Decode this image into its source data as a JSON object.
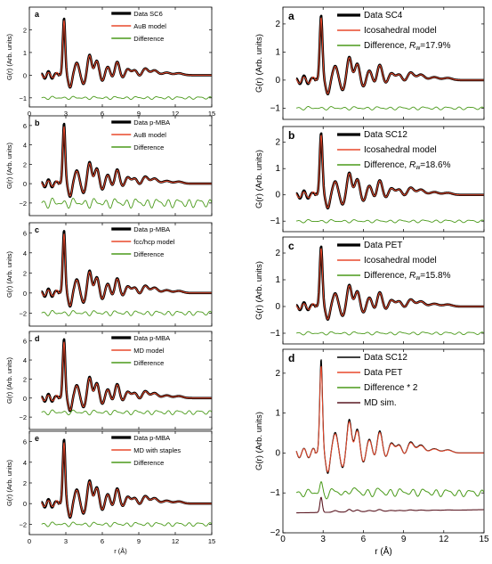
{
  "colors": {
    "data": "#000000",
    "model": "#e8482b",
    "difference": "#4a9a1a",
    "md_sim": "#5a1822",
    "axis": "#000000"
  },
  "chart_data": [
    {
      "type": "line",
      "panel_label": "a",
      "ylabel": "G(r) (Arb. units)",
      "xlabel": "",
      "xlim": [
        0,
        15
      ],
      "ylim": [
        -1.4,
        3.0
      ],
      "xticks": [
        0,
        3,
        6,
        9,
        12,
        15
      ],
      "yticks": [
        -1,
        0,
        1,
        2
      ],
      "xtick_labels": [
        "0",
        "3",
        "6",
        "9",
        "12",
        "15"
      ],
      "show_xtick_labels": true,
      "legend_position": "top-right",
      "series": [
        {
          "name": "Data SC6",
          "role": "data",
          "offset": 0,
          "amp": 1.0,
          "peak1": 2.5
        },
        {
          "name": "AuB model",
          "role": "model",
          "offset": 0,
          "amp": 1.0,
          "peak1": 2.5
        },
        {
          "name": "Difference",
          "role": "difference",
          "offset": -1.0,
          "amp": 0.08
        }
      ]
    },
    {
      "type": "line",
      "panel_label": "b",
      "ylabel": "G(r) (Arb. units)",
      "xlabel": "",
      "xlim": [
        0,
        15
      ],
      "ylim": [
        -3.3,
        7.0
      ],
      "xticks": [
        0,
        3,
        6,
        9,
        12,
        15
      ],
      "yticks": [
        -2,
        0,
        2,
        4,
        6
      ],
      "xtick_labels": [
        "0",
        "3",
        "6",
        "9",
        "12",
        "15"
      ],
      "show_xtick_labels": false,
      "legend_position": "top-right",
      "series": [
        {
          "name": "Data p-MBA",
          "role": "data",
          "offset": 0,
          "amp": 1.0,
          "peak1": 6.2
        },
        {
          "name": "AuB model",
          "role": "model",
          "offset": 0,
          "amp": 1.0,
          "peak1": 6.1
        },
        {
          "name": "Difference",
          "role": "difference",
          "offset": -2.0,
          "amp": 0.6
        }
      ]
    },
    {
      "type": "line",
      "panel_label": "c",
      "ylabel": "G(r) (Arb. units)",
      "xlabel": "",
      "xlim": [
        0,
        15
      ],
      "ylim": [
        -3.3,
        7.0
      ],
      "xticks": [
        0,
        3,
        6,
        9,
        12,
        15
      ],
      "yticks": [
        -2,
        0,
        2,
        4,
        6
      ],
      "xtick_labels": [
        "0",
        "3",
        "6",
        "9",
        "12",
        "15"
      ],
      "show_xtick_labels": false,
      "legend_position": "top-right",
      "series": [
        {
          "name": "Data p-MBA",
          "role": "data",
          "offset": 0,
          "amp": 1.0,
          "peak1": 6.2
        },
        {
          "name": "fcc/hcp model",
          "role": "model",
          "offset": 0,
          "amp": 1.0,
          "peak1": 6.1
        },
        {
          "name": "Difference",
          "role": "difference",
          "offset": -2.0,
          "amp": 0.3
        }
      ]
    },
    {
      "type": "line",
      "panel_label": "d",
      "ylabel": "G(r) (Arb. units)",
      "xlabel": "",
      "xlim": [
        0,
        15
      ],
      "ylim": [
        -3.3,
        7.0
      ],
      "xticks": [
        0,
        3,
        6,
        9,
        12,
        15
      ],
      "yticks": [
        -2,
        0,
        2,
        4,
        6
      ],
      "xtick_labels": [
        "0",
        "3",
        "6",
        "9",
        "12",
        "15"
      ],
      "show_xtick_labels": false,
      "legend_position": "top-right",
      "series": [
        {
          "name": "Data p-MBA",
          "role": "data",
          "offset": 0,
          "amp": 1.0,
          "peak1": 6.2
        },
        {
          "name": "MD model",
          "role": "model",
          "offset": 0,
          "amp": 1.0,
          "peak1": 6.1
        },
        {
          "name": "Difference",
          "role": "difference",
          "offset": -1.5,
          "amp": 0.3
        }
      ]
    },
    {
      "type": "line",
      "panel_label": "e",
      "ylabel": "G(r) (Arb. units)",
      "xlabel": "r (Å)",
      "xlim": [
        0,
        15
      ],
      "ylim": [
        -3.0,
        7.0
      ],
      "xticks": [
        0,
        3,
        6,
        9,
        12,
        15
      ],
      "yticks": [
        -2,
        0,
        2,
        4,
        6
      ],
      "xtick_labels": [
        "0",
        "3",
        "6",
        "9",
        "12",
        "15"
      ],
      "show_xtick_labels": true,
      "legend_position": "top-right",
      "series": [
        {
          "name": "Data p-MBA",
          "role": "data",
          "offset": 0,
          "amp": 1.0,
          "peak1": 6.2
        },
        {
          "name": "MD with staples",
          "role": "model",
          "offset": 0,
          "amp": 1.0,
          "peak1": 6.1
        },
        {
          "name": "Difference",
          "role": "difference",
          "offset": -2.0,
          "amp": 0.25
        }
      ]
    },
    {
      "type": "line",
      "panel_label": "a",
      "ylabel": "G(r) (Arb. units)",
      "xlabel": "",
      "xlim": [
        0,
        15
      ],
      "ylim": [
        -1.4,
        2.6
      ],
      "xticks": [
        0,
        3,
        6,
        9,
        12,
        15
      ],
      "yticks": [
        -1,
        0,
        1,
        2
      ],
      "xtick_labels": [
        "0",
        "3",
        "6",
        "9",
        "12",
        "15"
      ],
      "show_xtick_labels": false,
      "legend_position": "top-right",
      "series": [
        {
          "name": "Data SC4",
          "role": "data",
          "offset": 0,
          "amp": 1.0,
          "peak1": 2.3
        },
        {
          "name": "Icosahedral model",
          "role": "model",
          "offset": 0,
          "amp": 1.0,
          "peak1": 2.3
        },
        {
          "name": "Difference, ",
          "rw": "17.9%",
          "role": "difference",
          "offset": -1.0,
          "amp": 0.07
        }
      ]
    },
    {
      "type": "line",
      "panel_label": "b",
      "ylabel": "G(r) (Arb. units)",
      "xlabel": "",
      "xlim": [
        0,
        15
      ],
      "ylim": [
        -1.4,
        2.6
      ],
      "xticks": [
        0,
        3,
        6,
        9,
        12,
        15
      ],
      "yticks": [
        -1,
        0,
        1,
        2
      ],
      "xtick_labels": [
        "0",
        "3",
        "6",
        "9",
        "12",
        "15"
      ],
      "show_xtick_labels": false,
      "legend_position": "top-right",
      "series": [
        {
          "name": "Data SC12",
          "role": "data",
          "offset": 0,
          "amp": 1.0,
          "peak1": 2.35
        },
        {
          "name": "Icosahedral model",
          "role": "model",
          "offset": 0,
          "amp": 1.0,
          "peak1": 2.35
        },
        {
          "name": "Difference, ",
          "rw": "18.6%",
          "role": "difference",
          "offset": -1.0,
          "amp": 0.07
        }
      ]
    },
    {
      "type": "line",
      "panel_label": "c",
      "ylabel": "G(r) (Arb. units)",
      "xlabel": "",
      "xlim": [
        0,
        15
      ],
      "ylim": [
        -1.4,
        2.6
      ],
      "xticks": [
        0,
        3,
        6,
        9,
        12,
        15
      ],
      "yticks": [
        -1,
        0,
        1,
        2
      ],
      "xtick_labels": [
        "0",
        "3",
        "6",
        "9",
        "12",
        "15"
      ],
      "show_xtick_labels": false,
      "legend_position": "top-right",
      "series": [
        {
          "name": "Data PET",
          "role": "data",
          "offset": 0,
          "amp": 1.0,
          "peak1": 2.25
        },
        {
          "name": "Icosahedral model",
          "role": "model",
          "offset": 0,
          "amp": 1.0,
          "peak1": 2.25
        },
        {
          "name": "Difference, ",
          "rw": "15.8%",
          "role": "difference",
          "offset": -1.0,
          "amp": 0.07
        }
      ]
    },
    {
      "type": "line",
      "panel_label": "d",
      "ylabel": "G(r) (Arb. units)",
      "xlabel": "r (Å)",
      "xlim": [
        0,
        15
      ],
      "ylim": [
        -2.0,
        2.6
      ],
      "xticks": [
        0,
        3,
        6,
        9,
        12,
        15
      ],
      "yticks": [
        -2,
        -1,
        0,
        1,
        2
      ],
      "xtick_labels": [
        "0",
        "3",
        "6",
        "9",
        "12",
        "15"
      ],
      "show_xtick_labels": true,
      "legend_position": "top-right",
      "series": [
        {
          "name": "Data SC12",
          "role": "data_thin",
          "offset": 0,
          "amp": 1.0,
          "peak1": 2.35
        },
        {
          "name": "Data PET",
          "role": "model",
          "offset": 0,
          "amp": 1.0,
          "peak1": 2.25
        },
        {
          "name": "Difference * 2",
          "role": "difference_big",
          "offset": -1.0,
          "amp": 0.4
        },
        {
          "name": "MD sim.",
          "role": "md_sim",
          "offset": -1.5,
          "amp": 0.4
        }
      ]
    }
  ]
}
